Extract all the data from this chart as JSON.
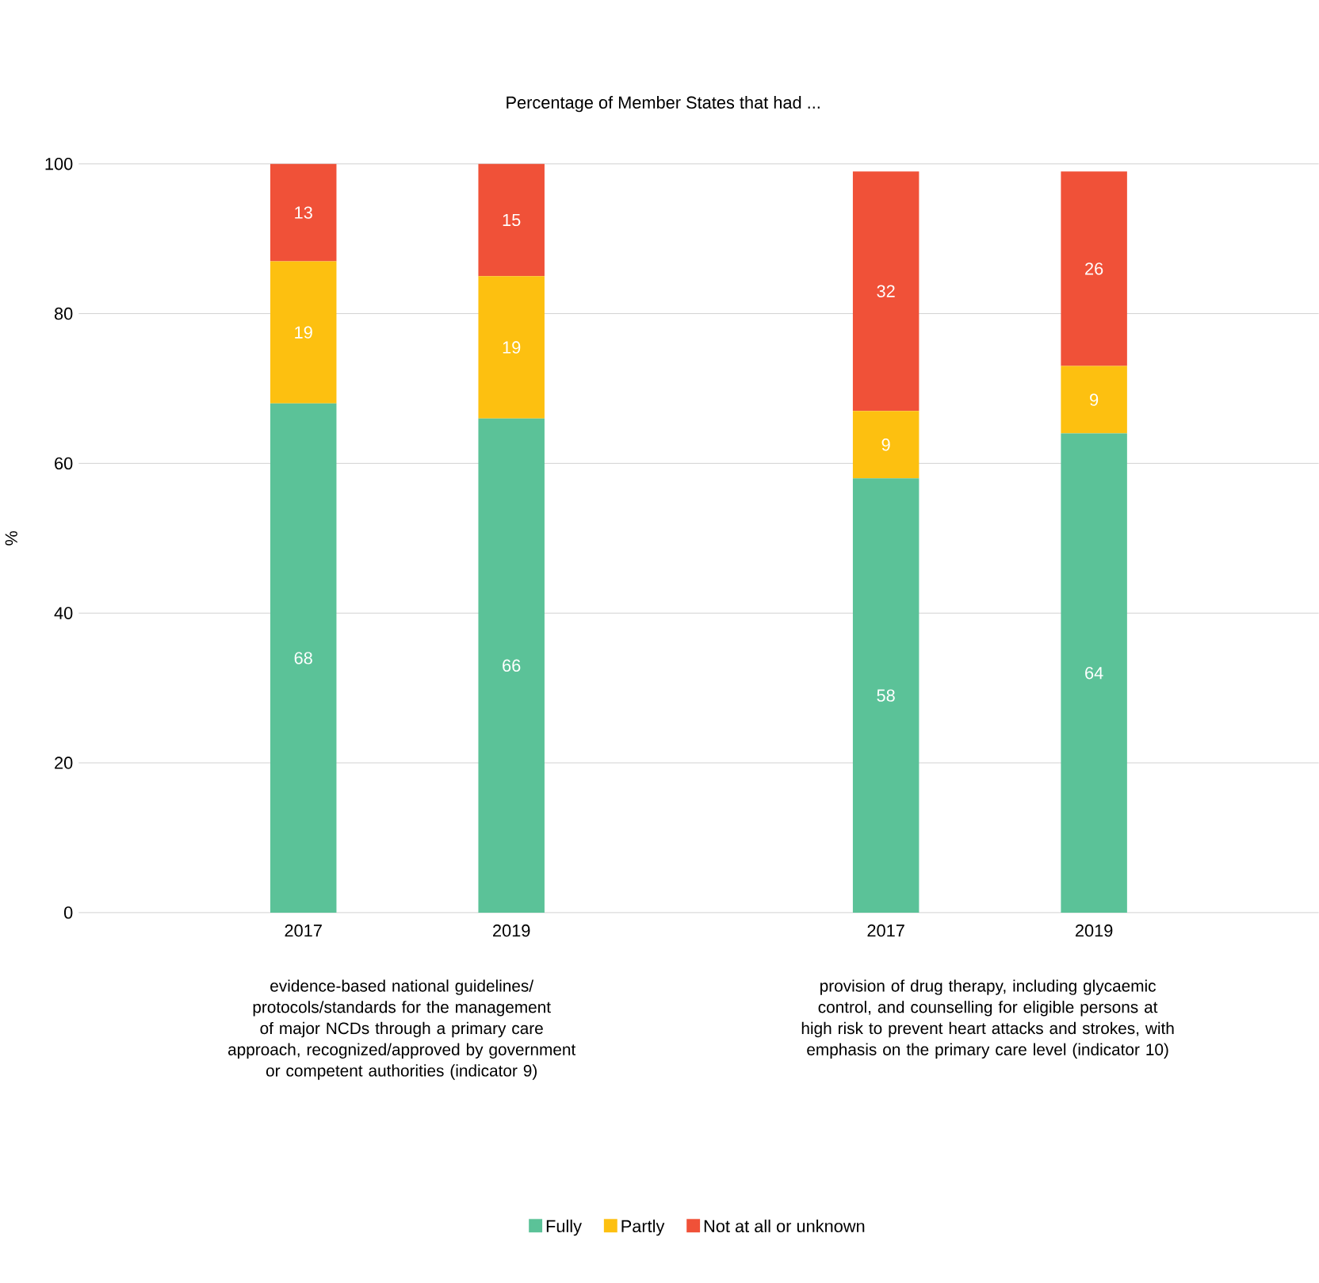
{
  "chart_data": {
    "type": "bar",
    "stacked": true,
    "title": "Percentage of Member States that had ...",
    "ylabel": "%",
    "categories": [
      "2017",
      "2019",
      "2017",
      "2019"
    ],
    "series": [
      {
        "name": "Fully",
        "color": "#5bc298",
        "values": [
          68,
          66,
          58,
          64
        ]
      },
      {
        "name": "Partly",
        "color": "#fdc010",
        "values": [
          19,
          19,
          9,
          9
        ]
      },
      {
        "name": "Not at all or unknown",
        "color": "#f05138",
        "values": [
          13,
          15,
          32,
          26
        ]
      }
    ],
    "ylim": [
      0,
      100
    ],
    "yticks": [
      0,
      20,
      40,
      60,
      80,
      100
    ],
    "grid": "y",
    "legend": "bottom",
    "data_labels": true,
    "annotations": [
      "evidence-based national guidelines/ protocols/standards for the management of major NCDs through a primary care approach, recognized/approved by government or competent authorities (indicator 9)",
      "provision of drug therapy, including glycaemic control, and counselling for eligible persons at high risk to prevent heart attacks and strokes, with emphasis on the primary care level (indicator 10)"
    ]
  }
}
